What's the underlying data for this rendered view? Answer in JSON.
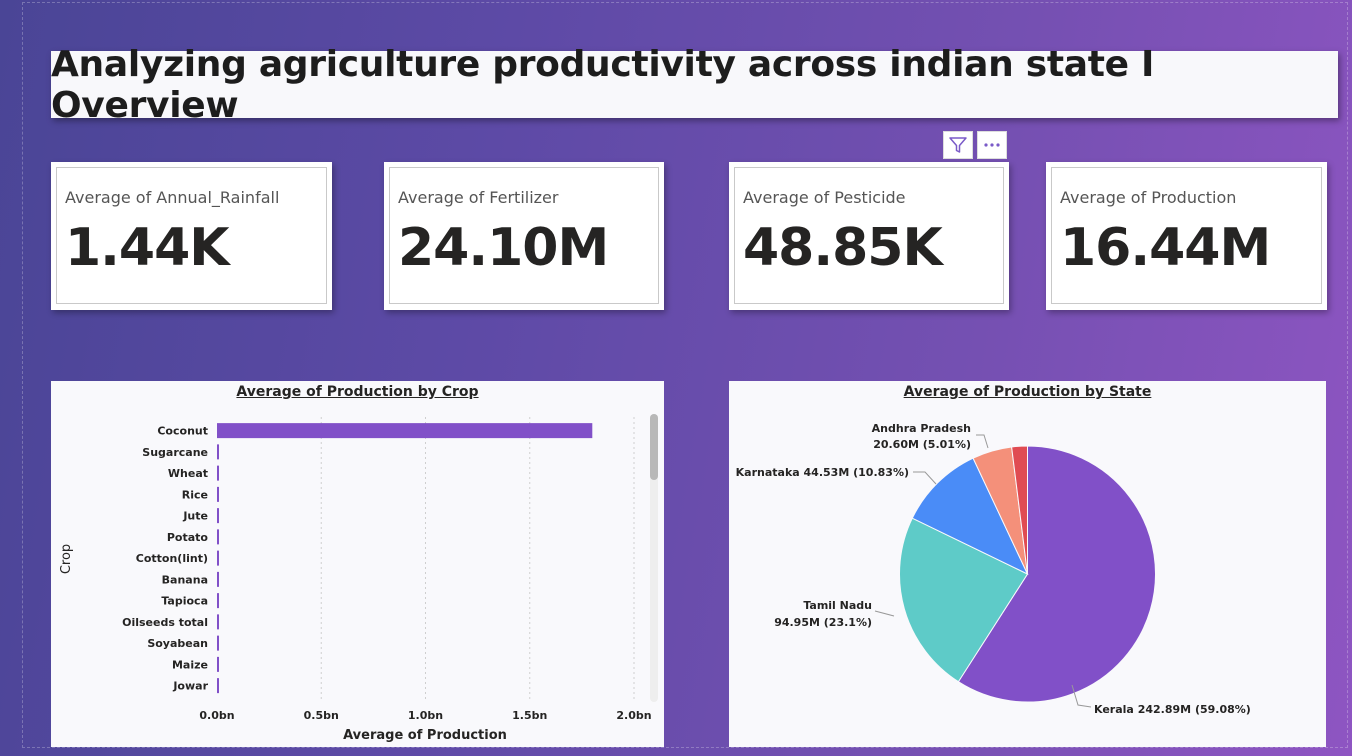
{
  "title": "Analyzing agriculture productivity across indian state I Overview",
  "cards": [
    {
      "label": "Average of Annual_Rainfall",
      "value": "1.44K"
    },
    {
      "label": "Average of Fertilizer",
      "value": "24.10M"
    },
    {
      "label": "Average of Pesticide",
      "value": "48.85K"
    },
    {
      "label": "Average of Production",
      "value": "16.44M"
    }
  ],
  "visual_header_icons": [
    "filter-icon",
    "more-options-icon"
  ],
  "colors": {
    "accent_purple": "#8150c8",
    "teal": "#5ecbc8",
    "blue": "#4a8cf7",
    "salmon": "#f4907a",
    "red": "#e04b52"
  },
  "chart_data": [
    {
      "type": "bar",
      "orientation": "horizontal",
      "title": "Average of Production by Crop",
      "xlabel": "Average of Production",
      "ylabel": "Crop",
      "xlim": [
        0,
        2.0
      ],
      "x_ticks": [
        "0.0bn",
        "0.5bn",
        "1.0bn",
        "1.5bn",
        "2.0bn"
      ],
      "x_tick_values": [
        0,
        0.5,
        1.0,
        1.5,
        2.0
      ],
      "categories": [
        "Coconut",
        "Sugarcane",
        "Wheat",
        "Rice",
        "Jute",
        "Potato",
        "Cotton(lint)",
        "Banana",
        "Tapioca",
        "Oilseeds total",
        "Soyabean",
        "Maize",
        "Jowar"
      ],
      "values": [
        1.8,
        0.006,
        0.003,
        0.002,
        0.002,
        0.002,
        0.002,
        0.002,
        0.002,
        0.002,
        0.002,
        0.002,
        0.002
      ],
      "grid": true
    },
    {
      "type": "pie",
      "title": "Average of Production by State",
      "slices": [
        {
          "label": "Kerala",
          "value_label": "242.89M",
          "value": 242.89,
          "percent_label": "(59.08%)",
          "percent": 59.08,
          "color": "#8150c8"
        },
        {
          "label": "Tamil Nadu",
          "value_label": "94.95M",
          "value": 94.95,
          "percent_label": "(23.1%)",
          "percent": 23.1,
          "color": "#5ecbc8"
        },
        {
          "label": "Karnataka",
          "value_label": "44.53M",
          "value": 44.53,
          "percent_label": "(10.83%)",
          "percent": 10.83,
          "color": "#4a8cf7"
        },
        {
          "label": "Andhra Pradesh",
          "value_label": "20.60M",
          "value": 20.6,
          "percent_label": "(5.01%)",
          "percent": 5.01,
          "color": "#f4907a"
        },
        {
          "label": "",
          "value_label": "",
          "value": 8.16,
          "percent_label": "",
          "percent": 1.98,
          "color": "#e04b52"
        }
      ]
    }
  ]
}
